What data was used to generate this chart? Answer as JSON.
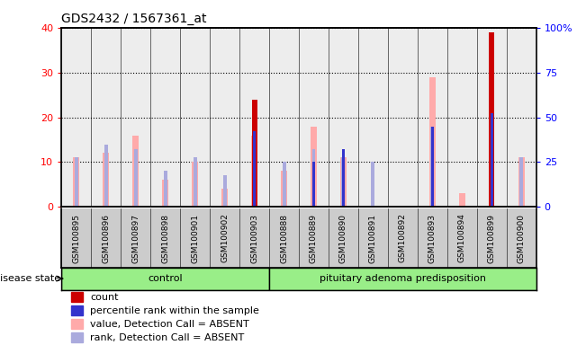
{
  "title": "GDS2432 / 1567361_at",
  "samples": [
    "GSM100895",
    "GSM100896",
    "GSM100897",
    "GSM100898",
    "GSM100901",
    "GSM100902",
    "GSM100903",
    "GSM100888",
    "GSM100889",
    "GSM100890",
    "GSM100891",
    "GSM100892",
    "GSM100893",
    "GSM100894",
    "GSM100899",
    "GSM100900"
  ],
  "count": [
    0,
    0,
    0,
    0,
    0,
    0,
    24,
    0,
    0,
    0,
    0,
    0,
    0,
    0,
    39,
    0
  ],
  "percentile_rank": [
    0,
    0,
    0,
    0,
    0,
    0,
    17,
    0,
    10,
    13,
    0,
    0,
    18,
    0,
    21,
    0
  ],
  "value_absent": [
    11,
    12,
    16,
    6,
    10,
    4,
    16,
    8,
    18,
    11,
    0,
    0,
    29,
    3,
    0,
    11
  ],
  "rank_absent": [
    11,
    14,
    13,
    8,
    11,
    7,
    10,
    10,
    13,
    11,
    10,
    0,
    18,
    0,
    11,
    11
  ],
  "left_ylim": [
    0,
    40
  ],
  "right_ylim": [
    0,
    100
  ],
  "left_yticks": [
    0,
    10,
    20,
    30,
    40
  ],
  "right_yticks": [
    0,
    25,
    50,
    75,
    100
  ],
  "right_yticklabels": [
    "0",
    "25",
    "50",
    "75",
    "100%"
  ],
  "count_color": "#cc0000",
  "percentile_color": "#3333cc",
  "value_absent_color": "#ffaaaa",
  "rank_absent_color": "#aaaadd",
  "col_bg_color": "#cccccc",
  "green_color": "#99ee88",
  "n_control": 7,
  "n_disease": 9,
  "group_labels": [
    "control",
    "pituitary adenoma predisposition"
  ],
  "disease_state_label": "disease state"
}
